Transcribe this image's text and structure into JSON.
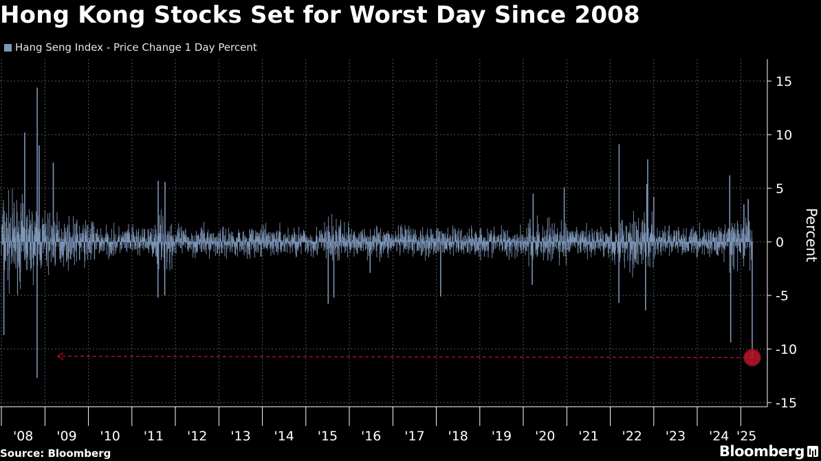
{
  "title": "Hong Kong Stocks Set for Worst Day Since 2008",
  "source": "Source: Bloomberg",
  "brand": "Bloomberg",
  "colors": {
    "background": "#000000",
    "series": "#7d96b8",
    "highlight": "#c0142a",
    "grid": "#5a5a5a"
  },
  "chart_data": {
    "type": "bar",
    "legend": "Hang Seng Index - Price Change 1 Day Percent",
    "ylabel": "Percent",
    "ylim": [
      -16,
      17
    ],
    "yticks": [
      15,
      10,
      5,
      0,
      -5,
      -10,
      -15
    ],
    "ytick_labels": [
      "15",
      "10",
      "5",
      "0",
      "-5",
      "-10",
      "-15"
    ],
    "x_range": [
      "2008-01-01",
      "2025-04-07"
    ],
    "xtick_labels": [
      "'08",
      "'09",
      "'10",
      "'11",
      "'12",
      "'13",
      "'14",
      "'15",
      "'16",
      "'17",
      "'18",
      "'19",
      "'20",
      "'21",
      "'22",
      "'23",
      "'24",
      "'25"
    ],
    "xticks": [
      "2008-01-01",
      "2009-01-01",
      "2010-01-01",
      "2011-01-01",
      "2012-01-01",
      "2013-01-01",
      "2014-01-01",
      "2015-01-01",
      "2016-01-01",
      "2017-01-01",
      "2018-01-01",
      "2019-01-01",
      "2020-01-01",
      "2021-01-01",
      "2022-01-01",
      "2023-01-01",
      "2024-01-01",
      "2025-01-01"
    ],
    "grid": true,
    "legend_position": "top-left",
    "extremes": [
      {
        "date": "2008-01-22",
        "value": -8.7
      },
      {
        "date": "2008-07-15",
        "value": 10.2
      },
      {
        "date": "2008-10-27",
        "value": -12.7
      },
      {
        "date": "2008-10-28",
        "value": 14.4
      },
      {
        "date": "2008-11-13",
        "value": 9.0
      },
      {
        "date": "2009-03-12",
        "value": 7.4
      },
      {
        "date": "2011-08-08",
        "value": -5.2
      },
      {
        "date": "2011-08-10",
        "value": 5.7
      },
      {
        "date": "2011-10-04",
        "value": -5.0
      },
      {
        "date": "2011-10-06",
        "value": 5.6
      },
      {
        "date": "2015-07-08",
        "value": -5.8
      },
      {
        "date": "2015-08-24",
        "value": -5.2
      },
      {
        "date": "2016-06-24",
        "value": -2.9
      },
      {
        "date": "2018-02-06",
        "value": -5.1
      },
      {
        "date": "2020-03-16",
        "value": -4.0
      },
      {
        "date": "2020-03-24",
        "value": 4.5
      },
      {
        "date": "2020-12-10",
        "value": 5.1
      },
      {
        "date": "2022-03-14",
        "value": -5.7
      },
      {
        "date": "2022-03-16",
        "value": 9.1
      },
      {
        "date": "2022-10-24",
        "value": -6.4
      },
      {
        "date": "2022-11-04",
        "value": 5.4
      },
      {
        "date": "2022-11-11",
        "value": 7.7
      },
      {
        "date": "2023-01-01",
        "value": 4.2
      },
      {
        "date": "2024-09-30",
        "value": 6.2
      },
      {
        "date": "2024-10-08",
        "value": -9.4
      },
      {
        "date": "2025-01-27",
        "value": 3.5
      },
      {
        "date": "2025-03-04",
        "value": 4.0
      },
      {
        "date": "2025-04-07",
        "value": -10.8
      }
    ],
    "highlight": {
      "date": "2025-04-07",
      "value": -10.8
    },
    "reference_line": {
      "value": -10.8,
      "from": "2025-04-07",
      "to": "2008-10-27",
      "style": "dashed-arrow"
    }
  }
}
